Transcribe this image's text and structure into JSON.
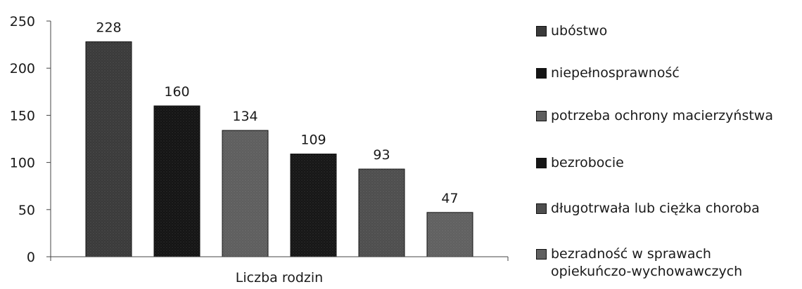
{
  "chart_data": {
    "type": "bar",
    "categories": [
      "Liczba rodzin"
    ],
    "xlabel": "Liczba rodzin",
    "ylim": [
      0,
      250
    ],
    "yticks": [
      0,
      50,
      100,
      150,
      200,
      250
    ],
    "grid": false,
    "legend_position": "right",
    "series": [
      {
        "name": "ubóstwo",
        "values": [
          228
        ],
        "color": "#3a3a3a"
      },
      {
        "name": "niepełnosprawność",
        "values": [
          160
        ],
        "color": "#141414"
      },
      {
        "name": "potrzeba ochrony macierzyństwa",
        "values": [
          134
        ],
        "color": "#5e5e5e"
      },
      {
        "name": "bezrobocie",
        "values": [
          109
        ],
        "color": "#161616"
      },
      {
        "name": "długotrwała lub ciężka choroba",
        "values": [
          93
        ],
        "color": "#4e4e4e"
      },
      {
        "name": "bezradność w sprawach\nopiekuńczo-wychowawczych",
        "values": [
          47
        ],
        "color": "#606060"
      }
    ]
  }
}
